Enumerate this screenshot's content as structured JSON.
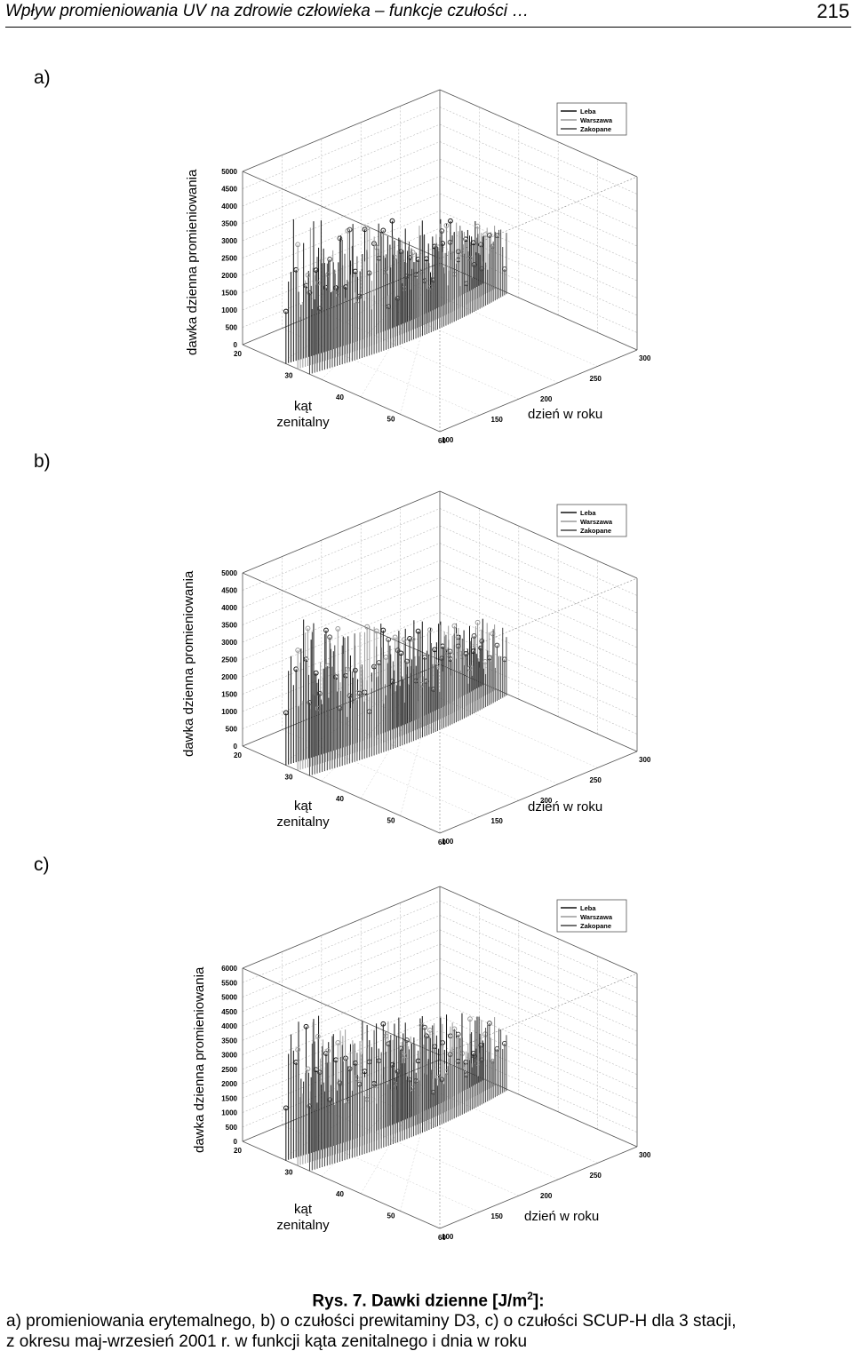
{
  "header": {
    "title": "Wpływ promieniowania UV na zdrowie człowieka – funkcje czułości …",
    "page_number": "215"
  },
  "panels": [
    {
      "label": "a)",
      "zlabel": "dawka dzienna promieniowania",
      "xlabel_line1": "kąt",
      "xlabel_line2": "zenitalny",
      "ylabel": "dzień w roku",
      "legend": [
        "Leba",
        "Warszawa",
        "Zakopane"
      ]
    },
    {
      "label": "b)",
      "zlabel": "dawka dzienna promieniowania",
      "xlabel_line1": "kąt",
      "xlabel_line2": "zenitalny",
      "ylabel": "dzień w roku",
      "legend": [
        "Leba",
        "Warszawa",
        "Zakopane"
      ]
    },
    {
      "label": "c)",
      "zlabel": "dawka dzienna promieniowania",
      "xlabel_line1": "kąt",
      "xlabel_line2": "zenitalny",
      "ylabel": "dzień w roku",
      "legend": [
        "Leba",
        "Warszawa",
        "Zakopane"
      ]
    }
  ],
  "chart_data": [
    {
      "type": "scatter",
      "title": "",
      "zlabel": "dawka dzienna promieniowania",
      "xlabel": "kąt zenitalny",
      "ylabel": "dzień w roku",
      "zticks": [
        "0",
        "500",
        "1000",
        "1500",
        "2000",
        "2500",
        "3000",
        "3500",
        "4000",
        "4500",
        "5000"
      ],
      "zlim": [
        0,
        5000
      ],
      "xticks": [
        "20",
        "30",
        "40",
        "50",
        "60"
      ],
      "yticks": [
        "100",
        "150",
        "200",
        "250",
        "300"
      ],
      "series": [
        {
          "name": "Leba"
        },
        {
          "name": "Warszawa"
        },
        {
          "name": "Zakopane"
        }
      ],
      "legend_position": "top-right",
      "grid": true
    },
    {
      "type": "scatter",
      "title": "",
      "zlabel": "dawka dzienna promieniowania",
      "xlabel": "kąt zenitalny",
      "ylabel": "dzień w roku",
      "zticks": [
        "0",
        "500",
        "1000",
        "1500",
        "2000",
        "2500",
        "3000",
        "3500",
        "4000",
        "4500",
        "5000"
      ],
      "zlim": [
        0,
        5000
      ],
      "xticks": [
        "20",
        "30",
        "40",
        "50",
        "60"
      ],
      "yticks": [
        "100",
        "150",
        "200",
        "250",
        "300"
      ],
      "series": [
        {
          "name": "Leba"
        },
        {
          "name": "Warszawa"
        },
        {
          "name": "Zakopane"
        }
      ],
      "legend_position": "top-right",
      "grid": true
    },
    {
      "type": "scatter",
      "title": "",
      "zlabel": "dawka dzienna promieniowania",
      "xlabel": "kąt zenitalny",
      "ylabel": "dzień w roku",
      "zticks": [
        "0",
        "500",
        "1000",
        "1500",
        "2000",
        "2500",
        "3000",
        "3500",
        "4000",
        "4500",
        "5000",
        "5500",
        "6000"
      ],
      "zlim": [
        0,
        6000
      ],
      "xticks": [
        "20",
        "30",
        "40",
        "50",
        "60"
      ],
      "yticks": [
        "100",
        "150",
        "200",
        "250",
        "300"
      ],
      "series": [
        {
          "name": "Leba"
        },
        {
          "name": "Warszawa"
        },
        {
          "name": "Zakopane"
        }
      ],
      "legend_position": "top-right",
      "grid": true
    }
  ],
  "caption": {
    "title_prefix": "Rys. 7. Dawki dzienne [J/m",
    "title_sup": "2",
    "title_suffix": "]:",
    "line1": "a) promieniowania erytemalnego, b) o czułości prewitaminy  D3, c) o czułości SCUP-H dla 3 stacji,",
    "line2": "z okresu maj-wrzesień 2001 r. w funkcji kąta zenitalnego i dnia w roku"
  }
}
